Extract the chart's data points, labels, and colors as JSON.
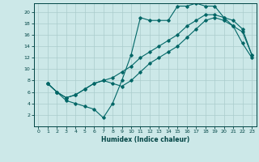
{
  "xlabel": "Humidex (Indice chaleur)",
  "bg_color": "#cce8e8",
  "grid_color": "#aacccc",
  "line_color": "#006666",
  "xlim": [
    -0.5,
    23.5
  ],
  "ylim": [
    0,
    21.5
  ],
  "xticks": [
    0,
    1,
    2,
    3,
    4,
    5,
    6,
    7,
    8,
    9,
    10,
    11,
    12,
    13,
    14,
    15,
    16,
    17,
    18,
    19,
    20,
    21,
    22,
    23
  ],
  "yticks": [
    2,
    4,
    6,
    8,
    10,
    12,
    14,
    16,
    18,
    20
  ],
  "line1_x": [
    1,
    2,
    3,
    4,
    5,
    6,
    7,
    8,
    9,
    10,
    11,
    12,
    13,
    14,
    15,
    16,
    17,
    18,
    19,
    20,
    21,
    22,
    23
  ],
  "line1_y": [
    7.5,
    6.0,
    4.5,
    4.0,
    3.5,
    3.0,
    1.5,
    4.0,
    8.0,
    12.5,
    19.0,
    18.5,
    18.5,
    18.5,
    21.0,
    21.0,
    21.5,
    21.0,
    21.0,
    19.0,
    17.5,
    14.5,
    12.0
  ],
  "line2_x": [
    1,
    2,
    3,
    4,
    5,
    6,
    7,
    8,
    9,
    10,
    11,
    12,
    13,
    14,
    15,
    16,
    17,
    18,
    19,
    20,
    21,
    22,
    23
  ],
  "line2_y": [
    7.5,
    6.0,
    5.0,
    5.5,
    6.5,
    7.5,
    8.0,
    8.5,
    9.5,
    10.5,
    12.0,
    13.0,
    14.0,
    15.0,
    16.0,
    17.5,
    18.5,
    19.5,
    19.5,
    19.0,
    18.5,
    17.0,
    12.5
  ],
  "line3_x": [
    1,
    2,
    3,
    4,
    5,
    6,
    7,
    8,
    9,
    10,
    11,
    12,
    13,
    14,
    15,
    16,
    17,
    18,
    19,
    20,
    21,
    22,
    23
  ],
  "line3_y": [
    7.5,
    6.0,
    5.0,
    5.5,
    6.5,
    7.5,
    8.0,
    7.5,
    7.0,
    8.0,
    9.5,
    11.0,
    12.0,
    13.0,
    14.0,
    15.5,
    17.0,
    18.5,
    19.0,
    18.5,
    17.5,
    16.5,
    12.5
  ]
}
